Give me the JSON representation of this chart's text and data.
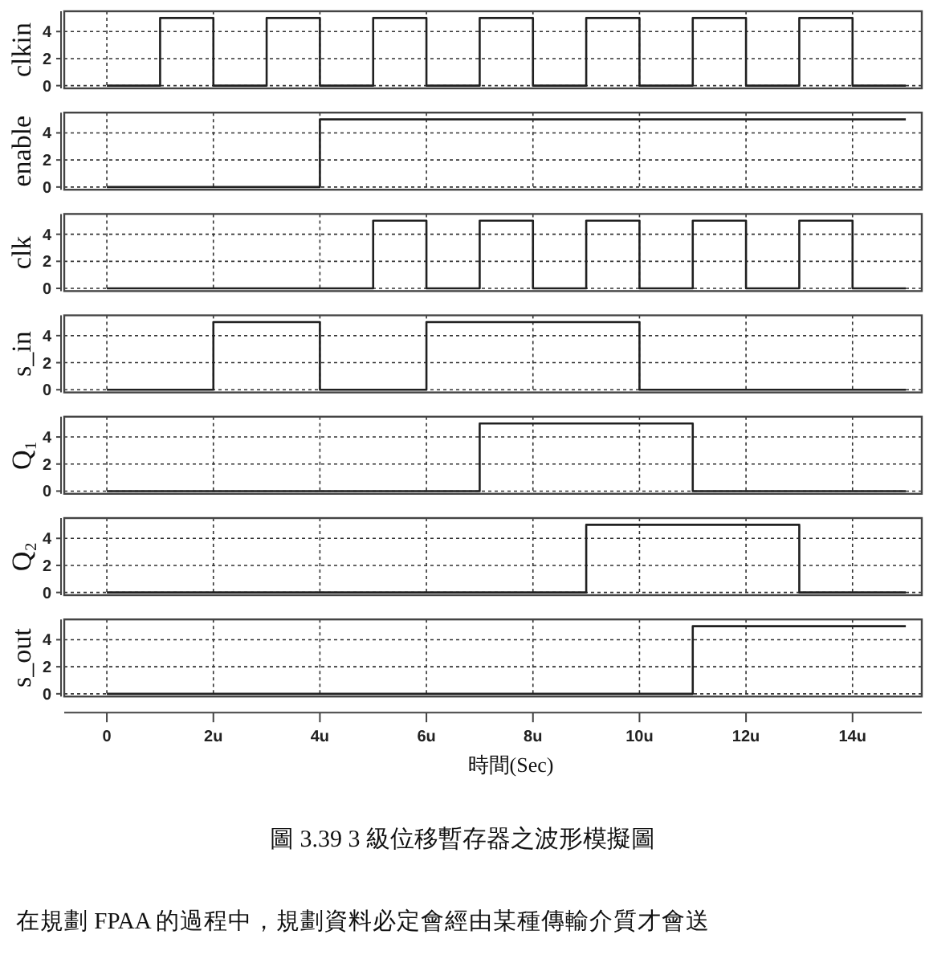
{
  "chart_data": [
    {
      "type": "step",
      "ylabel": "clkin",
      "categories": [
        null,
        null,
        null,
        null,
        null,
        null,
        null,
        null,
        null,
        null,
        null,
        null,
        null,
        null,
        null,
        null
      ],
      "series": [
        {
          "color": "#202020",
          "values": [
            0,
            5,
            0,
            5,
            0,
            5,
            0,
            5,
            0,
            5,
            0,
            5,
            0,
            5,
            0,
            0
          ]
        }
      ],
      "ylim": [
        -0.2,
        5.5
      ],
      "yticks": [
        0,
        2,
        4
      ],
      "grid": true,
      "tick_labels": "y"
    },
    {
      "type": "step",
      "ylabel": "enable",
      "categories": [
        null,
        null,
        null,
        null,
        null,
        null,
        null,
        null,
        null,
        null,
        null,
        null,
        null,
        null,
        null,
        null
      ],
      "series": [
        {
          "color": "#202020",
          "values": [
            0,
            0,
            0,
            0,
            5,
            5,
            5,
            5,
            5,
            5,
            5,
            5,
            5,
            5,
            5,
            5
          ]
        }
      ],
      "ylim": [
        -0.2,
        5.5
      ],
      "yticks": [
        0,
        2,
        4
      ],
      "grid": true,
      "tick_labels": "y"
    },
    {
      "type": "step",
      "ylabel": "clk",
      "categories": [
        null,
        null,
        null,
        null,
        null,
        null,
        null,
        null,
        null,
        null,
        null,
        null,
        null,
        null,
        null,
        null
      ],
      "series": [
        {
          "color": "#202020",
          "values": [
            0,
            0,
            0,
            0,
            0,
            5,
            0,
            5,
            0,
            5,
            0,
            5,
            0,
            5,
            0,
            0
          ]
        }
      ],
      "ylim": [
        -0.2,
        5.5
      ],
      "yticks": [
        0,
        2,
        4
      ],
      "grid": true,
      "tick_labels": "y"
    },
    {
      "type": "step",
      "ylabel": "s_in",
      "categories": [
        null,
        null,
        null,
        null,
        null,
        null,
        null,
        null,
        null,
        null,
        null,
        null,
        null,
        null,
        null,
        null
      ],
      "series": [
        {
          "color": "#202020",
          "values": [
            0,
            0,
            5,
            5,
            0,
            0,
            5,
            5,
            5,
            5,
            0,
            0,
            0,
            0,
            0,
            0
          ]
        }
      ],
      "ylim": [
        -0.2,
        5.5
      ],
      "yticks": [
        0,
        2,
        4
      ],
      "grid": true,
      "tick_labels": "y"
    },
    {
      "type": "step",
      "ylabel": "Q₁",
      "categories": [
        null,
        null,
        null,
        null,
        null,
        null,
        null,
        null,
        null,
        null,
        null,
        null,
        null,
        null,
        null,
        null
      ],
      "series": [
        {
          "color": "#202020",
          "values": [
            0,
            0,
            0,
            0,
            0,
            0,
            0,
            5,
            5,
            5,
            5,
            0,
            0,
            0,
            0,
            0
          ]
        }
      ],
      "ylim": [
        -0.2,
        5.5
      ],
      "yticks": [
        0,
        2,
        4
      ],
      "grid": true,
      "tick_labels": "y"
    },
    {
      "type": "step",
      "ylabel": "Q₂",
      "categories": [
        null,
        null,
        null,
        null,
        null,
        null,
        null,
        null,
        null,
        null,
        null,
        null,
        null,
        null,
        null,
        null
      ],
      "series": [
        {
          "color": "#202020",
          "values": [
            0,
            0,
            0,
            0,
            0,
            0,
            0,
            0,
            0,
            5,
            5,
            5,
            5,
            0,
            0,
            0
          ]
        }
      ],
      "ylim": [
        -0.2,
        5.5
      ],
      "yticks": [
        0,
        2,
        4
      ],
      "grid": true,
      "tick_labels": "y"
    },
    {
      "type": "step",
      "ylabel": "s_out",
      "xlabel": "時間(Sec)",
      "categories": [
        "0",
        null,
        "2u",
        null,
        "4u",
        null,
        "6u",
        null,
        "8u",
        null,
        "10u",
        null,
        "12u",
        null,
        "14u",
        null
      ],
      "series": [
        {
          "color": "#202020",
          "values": [
            0,
            0,
            0,
            0,
            0,
            0,
            0,
            0,
            0,
            0,
            0,
            5,
            5,
            5,
            5,
            5
          ]
        }
      ],
      "ylim": [
        -0.2,
        5.5
      ],
      "yticks": [
        0,
        2,
        4
      ],
      "grid": true,
      "annotations": [
        "圖 3.39  3 級位移暫存器之波形模擬圖",
        "在規劃 FPAA 的過程中，規劃資料必定會經由某種傳輸介質才會送"
      ]
    }
  ]
}
